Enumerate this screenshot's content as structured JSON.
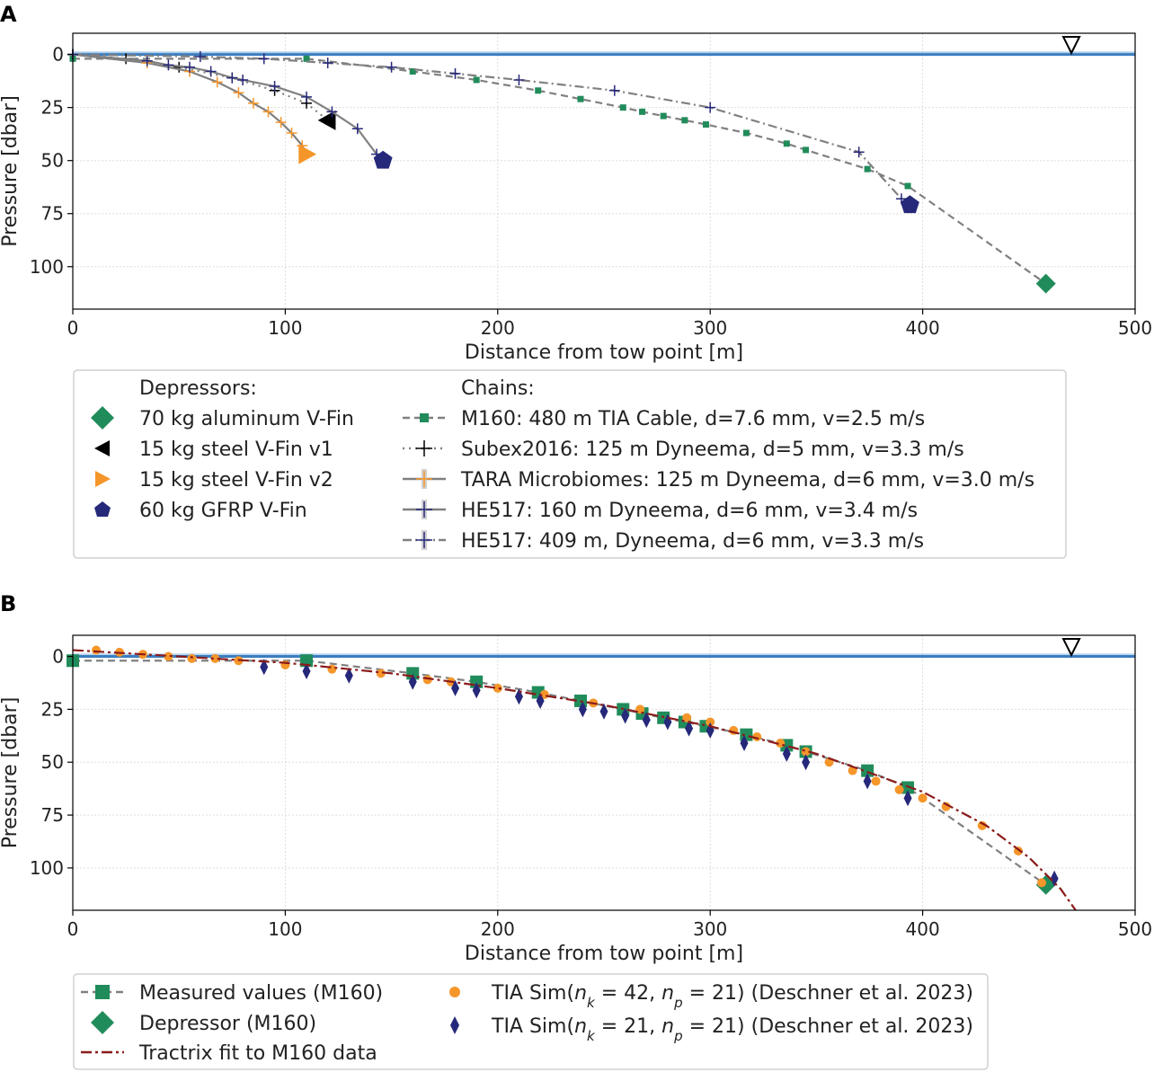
{
  "chart_data": [
    {
      "panel": "A",
      "type": "line",
      "xlabel": "Distance from tow point [m]",
      "ylabel": "Pressure [dbar]",
      "xlim": [
        0,
        500
      ],
      "ylim": [
        120,
        -10
      ],
      "xticks": [
        0,
        100,
        200,
        300,
        400,
        500
      ],
      "yticks": [
        0,
        25,
        50,
        75,
        100
      ],
      "grid": true,
      "surface_line": 0,
      "surface_marker_x": 470,
      "legend": {
        "depressors_title": "Depressors:",
        "chains_title": "Chains:",
        "depressors": [
          {
            "label": "70 kg aluminum V-Fin",
            "marker": "diamond",
            "color": "#218c5b"
          },
          {
            "label": "15 kg steel V-Fin v1",
            "marker": "triangle-left",
            "color": "#000000"
          },
          {
            "label": "15 kg steel V-Fin v2",
            "marker": "triangle-right",
            "color": "#f5962a"
          },
          {
            "label": "60 kg GFRP V-Fin",
            "marker": "pentagon",
            "color": "#26287a"
          }
        ],
        "chains": [
          {
            "label": "M160: 480 m TIA Cable, d=7.6 mm, v=2.5 m/s"
          },
          {
            "label": "Subex2016: 125 m Dyneema, d=5 mm, v=3.3 m/s"
          },
          {
            "label": "TARA Microbiomes: 125 m Dyneema, d=6 mm, v=3.0 m/s"
          },
          {
            "label": "HE517: 160 m Dyneema, d=6 mm, v=3.4 m/s"
          },
          {
            "label": "HE517: 409 m, Dyneema, d=6 mm, v=3.3 m/s"
          }
        ]
      },
      "series": [
        {
          "name": "M160: 480 m TIA Cable, d=7.6 mm, v=2.5 m/s",
          "line_color": "#808080",
          "dash": "8,5",
          "marker": "square",
          "marker_color": "#218c5b",
          "x": [
            0,
            110,
            160,
            190,
            219,
            239,
            259,
            268,
            278,
            288,
            298,
            317,
            336,
            345,
            374,
            393
          ],
          "y": [
            2,
            2,
            8,
            12,
            17,
            21,
            25,
            27,
            29,
            31,
            33,
            37,
            42,
            45,
            54,
            62
          ],
          "end": {
            "x": 458,
            "y": 108,
            "marker": "diamond",
            "color": "#218c5b"
          }
        },
        {
          "name": "Subex2016: 125 m Dyneema, d=5 mm, v=3.3 m/s",
          "line_color": "#808080",
          "dash": "2,5",
          "marker": "plus",
          "marker_color": "#000000",
          "x": [
            0,
            25,
            50,
            75,
            95,
            110
          ],
          "y": [
            0,
            2,
            6,
            11,
            17,
            23
          ],
          "end": {
            "x": 120,
            "y": 31,
            "marker": "triangle-left",
            "color": "#000000"
          }
        },
        {
          "name": "TARA Microbiomes: 125 m Dyneema, d=6 mm, v=3.0 m/s",
          "line_color": "#808080",
          "dash": "",
          "marker": "plus",
          "marker_color": "#f5962a",
          "x": [
            0,
            35,
            55,
            68,
            78,
            85,
            92,
            98,
            103,
            108
          ],
          "y": [
            0,
            4,
            8,
            13,
            18,
            23,
            27,
            32,
            37,
            43
          ],
          "end": {
            "x": 110,
            "y": 47,
            "marker": "triangle-right",
            "color": "#f5962a"
          }
        },
        {
          "name": "HE517: 160 m Dyneema, d=6 mm, v=3.4 m/s",
          "line_color": "#808080",
          "dash": "",
          "marker": "plus",
          "marker_color": "#26287a",
          "x": [
            0,
            35,
            45,
            55,
            65,
            75,
            80,
            95,
            110,
            122,
            134,
            143
          ],
          "y": [
            0,
            3,
            5,
            6,
            8,
            11,
            12,
            15,
            20,
            27,
            35,
            47
          ],
          "end": {
            "x": 146,
            "y": 50,
            "marker": "pentagon",
            "color": "#26287a"
          }
        },
        {
          "name": "HE517: 409 m, Dyneema, d=6 mm, v=3.3 m/s",
          "line_color": "#808080",
          "dash": "10,4,2,4",
          "marker": "plus",
          "marker_color": "#26287a",
          "x": [
            0,
            60,
            90,
            120,
            150,
            180,
            210,
            255,
            300,
            370,
            390
          ],
          "y": [
            0,
            1,
            2,
            4,
            6,
            9,
            12,
            17,
            25,
            46,
            68
          ],
          "end": {
            "x": 394,
            "y": 71,
            "marker": "pentagon",
            "color": "#26287a"
          }
        }
      ]
    },
    {
      "panel": "B",
      "type": "scatter",
      "xlabel": "Distance from tow point [m]",
      "ylabel": "Pressure [dbar]",
      "xlim": [
        0,
        500
      ],
      "ylim": [
        120,
        -10
      ],
      "xticks": [
        0,
        100,
        200,
        300,
        400,
        500
      ],
      "yticks": [
        0,
        25,
        50,
        75,
        100
      ],
      "grid": true,
      "surface_line": 0,
      "surface_marker_x": 470,
      "legend": {
        "entries": [
          {
            "label": "Measured values (M160)",
            "marker": "square",
            "color": "#218c5b"
          },
          {
            "label": "Depressor (M160)",
            "marker": "diamond",
            "color": "#218c5b"
          },
          {
            "label": "Tractrix fit to M160 data",
            "marker": "line",
            "color": "#8b1a1a"
          }
        ],
        "sim_entries": [
          {
            "prefix": "TIA Sim(",
            "nk": "42",
            "np": "21",
            "suffix": ") (Deschner et al. 2023)",
            "marker": "circle",
            "color": "#f5962a"
          },
          {
            "prefix": "TIA Sim(",
            "nk": "21",
            "np": "21",
            "suffix": ") (Deschner et al. 2023)",
            "marker": "thin-diamond",
            "color": "#26287a"
          }
        ]
      },
      "series": [
        {
          "name": "Measured values (M160)",
          "line_color": "#808080",
          "dash": "8,5",
          "marker": "square",
          "marker_color": "#218c5b",
          "x": [
            0,
            110,
            160,
            190,
            219,
            239,
            259,
            268,
            278,
            288,
            298,
            317,
            336,
            345,
            374,
            393
          ],
          "y": [
            2,
            2,
            8,
            12,
            17,
            21,
            25,
            27,
            29,
            31,
            33,
            37,
            42,
            45,
            54,
            62
          ],
          "end": {
            "x": 458,
            "y": 108,
            "marker": "diamond",
            "color": "#218c5b"
          }
        },
        {
          "name": "TIA Sim(nk=42, np=21) (Deschner et al. 2023)",
          "marker": "circle",
          "marker_color": "#f5962a",
          "x": [
            11,
            22,
            33,
            45,
            56,
            67,
            78,
            100,
            122,
            145,
            167,
            178,
            200,
            222,
            245,
            267,
            289,
            300,
            311,
            322,
            333,
            345,
            356,
            367,
            378,
            389,
            400,
            411,
            428,
            445,
            456
          ],
          "y": [
            -3,
            -2,
            -1,
            0,
            1,
            1,
            2,
            4,
            6,
            8,
            11,
            12,
            15,
            18,
            22,
            25,
            29,
            31,
            35,
            38,
            41,
            45,
            50,
            54,
            59,
            63,
            67,
            71,
            80,
            92,
            107
          ]
        },
        {
          "name": "TIA Sim(nk=21, np=21) (Deschner et al. 2023)",
          "marker": "thin-diamond",
          "marker_color": "#26287a",
          "x": [
            90,
            110,
            130,
            160,
            180,
            190,
            210,
            220,
            240,
            250,
            260,
            270,
            280,
            290,
            300,
            316,
            336,
            345,
            374,
            393,
            462
          ],
          "y": [
            5,
            7,
            9,
            12,
            15,
            16,
            19,
            21,
            25,
            26,
            28,
            30,
            31,
            34,
            35,
            41,
            46,
            50,
            59,
            67,
            105
          ]
        },
        {
          "name": "Tractrix fit to M160 data",
          "line_color": "#8b1a1a",
          "dash": "12,4,3,4",
          "marker": "none",
          "type": "curve",
          "x": [
            0,
            50,
            100,
            150,
            200,
            250,
            300,
            350,
            400,
            430,
            450,
            465,
            472
          ],
          "y": [
            -3,
            0,
            3,
            8,
            15,
            23,
            33,
            46,
            64,
            80,
            95,
            110,
            120
          ]
        }
      ]
    }
  ],
  "labels": {
    "panel_a": "A",
    "panel_b": "B"
  }
}
